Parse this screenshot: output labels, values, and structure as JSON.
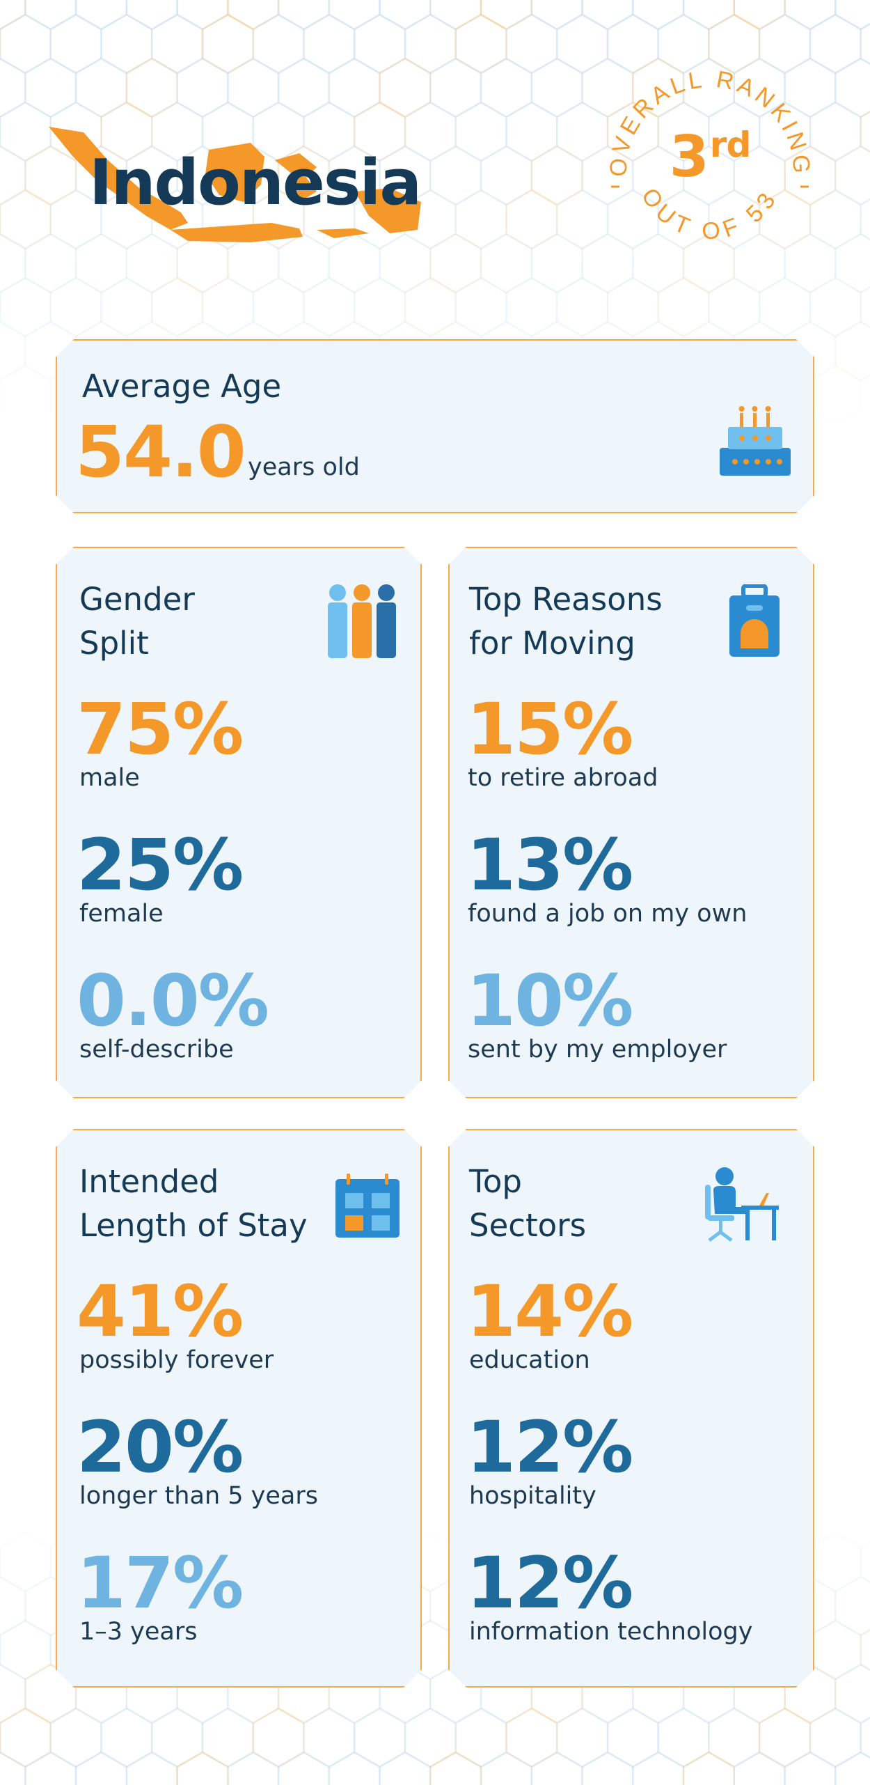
{
  "header": {
    "country": "Indonesia",
    "ranking": {
      "top_text": "OVERALL RANKING",
      "value": "3",
      "suffix": "rd",
      "bottom_text": "OUT OF 53"
    }
  },
  "colors": {
    "orange": "#f5982a",
    "dark_blue": "#1e6a9b",
    "light_blue": "#6fb3e0",
    "navy_text": "#143a57",
    "card_bg": "#eef5fb",
    "card_border": "#f6a94a"
  },
  "average_age": {
    "title": "Average Age",
    "value": "54.0",
    "unit": "years old",
    "icon": "birthday-cake-icon"
  },
  "gender_split": {
    "title_line1": "Gender",
    "title_line2": "Split",
    "icon": "people-icon",
    "stats": [
      {
        "value": "75%",
        "label": "male"
      },
      {
        "value": "25%",
        "label": "female"
      },
      {
        "value": "0.0%",
        "label": "self-describe"
      }
    ]
  },
  "reasons": {
    "title_line1": "Top Reasons",
    "title_line2": "for Moving",
    "icon": "suitcase-icon",
    "stats": [
      {
        "value": "15%",
        "label": "to retire abroad"
      },
      {
        "value": "13%",
        "label": "found a job on my own"
      },
      {
        "value": "10%",
        "label": "sent by my employer"
      }
    ]
  },
  "stay": {
    "title_line1": "Intended",
    "title_line2": "Length of Stay",
    "icon": "calendar-icon",
    "stats": [
      {
        "value": "41%",
        "label": "possibly forever"
      },
      {
        "value": "20%",
        "label": "longer than 5 years"
      },
      {
        "value": "17%",
        "label": "1–3 years"
      }
    ]
  },
  "sectors": {
    "title_line1": "Top",
    "title_line2": "Sectors",
    "icon": "person-at-desk-icon",
    "stats": [
      {
        "value": "14%",
        "label": "education"
      },
      {
        "value": "12%",
        "label": "hospitality"
      },
      {
        "value": "12%",
        "label": "information technology"
      }
    ]
  }
}
